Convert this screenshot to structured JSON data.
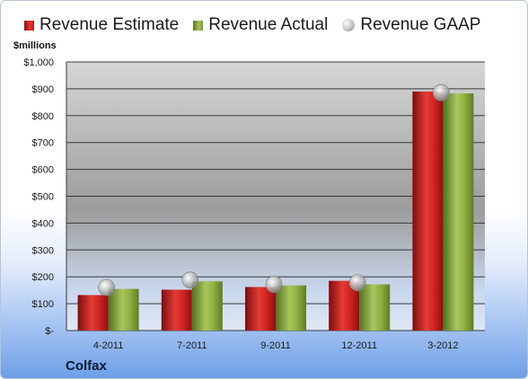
{
  "legend": {
    "estimate": "Revenue Estimate",
    "actual": "Revenue Actual",
    "gaap": "Revenue GAAP"
  },
  "unit_label": "$millions",
  "company": "Colfax",
  "colors": {
    "estimate": "#c4191c",
    "actual": "#8aad3d",
    "gaap": "#b8b8b8"
  },
  "chart_data": {
    "type": "bar",
    "categories": [
      "4-2011",
      "7-2011",
      "9-2011",
      "12-2011",
      "3-2012"
    ],
    "series": [
      {
        "name": "Revenue Estimate",
        "values": [
          132,
          152,
          162,
          185,
          890
        ]
      },
      {
        "name": "Revenue Actual",
        "values": [
          155,
          183,
          168,
          172,
          883
        ]
      },
      {
        "name": "Revenue GAAP",
        "values": [
          160,
          188,
          172,
          178,
          886
        ]
      }
    ],
    "ylabel": "$millions",
    "ylim": [
      0,
      1000
    ],
    "yticks": [
      0,
      100,
      200,
      300,
      400,
      500,
      600,
      700,
      800,
      900,
      1000
    ],
    "ytick_labels": [
      "$-",
      "$100",
      "$200",
      "$300",
      "$400",
      "$500",
      "$600",
      "$700",
      "$800",
      "$900",
      "$1,000"
    ],
    "grid": true,
    "legend_position": "top"
  }
}
